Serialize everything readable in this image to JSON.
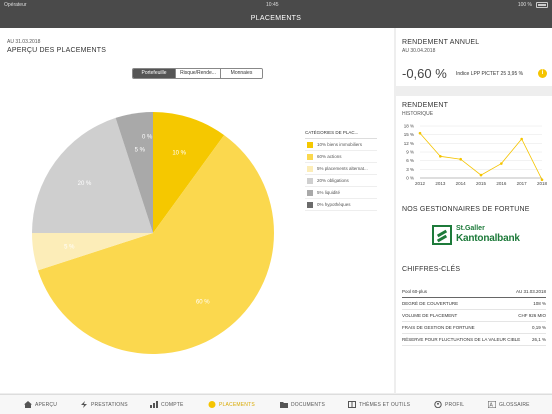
{
  "status_bar": {
    "carrier": "Opérateur",
    "time": "10:45",
    "battery": "100 %"
  },
  "nav": {
    "title": "PLACEMENTS"
  },
  "main": {
    "as_of": "AU 31.03.2018",
    "title": "APERÇU DES PLACEMENTS",
    "segments": [
      {
        "label": "Portefeuille",
        "active": true
      },
      {
        "label": "Risque/Rende...",
        "active": false
      },
      {
        "label": "Monnaies",
        "active": false
      }
    ]
  },
  "chart_data": [
    {
      "type": "pie",
      "slices": [
        {
          "label": "10 %",
          "value": 10,
          "color": "#f5c800"
        },
        {
          "label": "60 %",
          "value": 60,
          "color": "#fbd84e"
        },
        {
          "label": "5 %",
          "value": 5,
          "color": "#fcedb8"
        },
        {
          "label": "20 %",
          "value": 20,
          "color": "#cfcfcf"
        },
        {
          "label": "5 %",
          "value": 5,
          "color": "#a9a9a9"
        },
        {
          "label": "0 %",
          "value": 0,
          "color": "#6b6b6b"
        }
      ],
      "legend_title": "CATÉGORIES DE PLAC...",
      "legend": [
        {
          "label": "10% biens immobiliers",
          "color": "#f5c800"
        },
        {
          "label": "60% actions",
          "color": "#fbd84e"
        },
        {
          "label": "5% placements alternat...",
          "color": "#fcedb8"
        },
        {
          "label": "20% obligations",
          "color": "#cfcfcf"
        },
        {
          "label": "5% liquidité",
          "color": "#a9a9a9"
        },
        {
          "label": "0% hypothèques",
          "color": "#6b6b6b"
        }
      ],
      "legend_position": "right"
    },
    {
      "type": "line",
      "title": "RENDEMENT",
      "subtitle": "HISTORIQUE",
      "x": [
        "2012",
        "2013",
        "2014",
        "2015",
        "2016",
        "2017",
        "2018"
      ],
      "series": [
        {
          "values": [
            15.5,
            7.5,
            6.5,
            1,
            5,
            13.5,
            -0.6
          ],
          "color": "#f5c400"
        }
      ],
      "y_ticks": [
        "18 %",
        "15 %",
        "12 %",
        "9 %",
        "6 %",
        "3 %",
        "0 %"
      ],
      "ylim": [
        0,
        18
      ],
      "grid": true
    }
  ],
  "side": {
    "annual": {
      "title": "RENDEMENT ANNUEL",
      "as_of": "AU 30.04.2018",
      "value": "-0,60 %",
      "index_label": "Indice LPP PICTET 25 3,95 %",
      "info_icon": "i"
    },
    "managers": {
      "title": "NOS GESTIONNAIRES DE FORTUNE",
      "logo_line1": "St.Galler",
      "logo_line2": "Kantonalbank"
    },
    "key_figures": {
      "title": "CHIFFRES-CLÉS",
      "rows": [
        {
          "label": "Pool 60-plus",
          "value": "AU 31.03.2018"
        },
        {
          "label": "DEGRÉ DE COUVERTURE",
          "value": "108 %"
        },
        {
          "label": "VOLUME DE PLACEMENT",
          "value": "CHF 926 MIO"
        },
        {
          "label": "FRAIS DE GESTION DE FORTUNE",
          "value": "0,19 %"
        },
        {
          "label": "RÉSERVE POUR FLUCTUATIONS DE LA VALEUR CIBLE",
          "value": "26,1 %"
        }
      ]
    }
  },
  "tabs": [
    {
      "label": "APERÇU",
      "icon": "house-icon",
      "active": false
    },
    {
      "label": "PRESTATIONS",
      "icon": "lightning-icon",
      "active": false
    },
    {
      "label": "COMPTE",
      "icon": "bar-chart-icon",
      "active": false
    },
    {
      "label": "PLACEMENTS",
      "icon": "coin-icon",
      "active": true
    },
    {
      "label": "DOCUMENTS",
      "icon": "folder-icon",
      "active": false
    },
    {
      "label": "THÈMES ET OUTILS",
      "icon": "book-icon",
      "active": false
    },
    {
      "label": "PROFIL",
      "icon": "person-icon",
      "active": false
    },
    {
      "label": "GLOSSAIRE",
      "icon": "dictionary-icon",
      "active": false
    }
  ]
}
